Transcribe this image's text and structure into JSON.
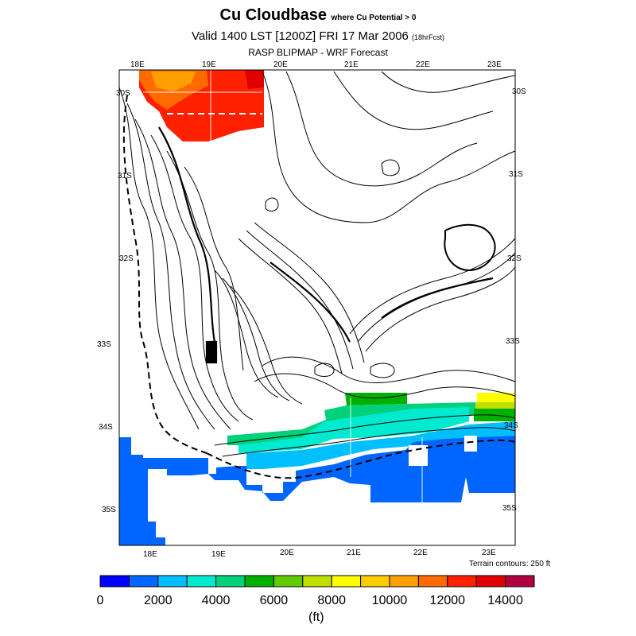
{
  "title": {
    "main": "Cu Cloudbase",
    "main_suffix": "where Cu Potential > 0",
    "valid": "Valid 1400 LST [1200Z] FRI 17 Mar 2006",
    "valid_suffix": "(18hrFcst)",
    "source": "RASP BLIPMAP - WRF Forecast"
  },
  "lon_labels": [
    "18E",
    "19E",
    "20E",
    "21E",
    "22E",
    "23E"
  ],
  "lat_labels": [
    "30S",
    "31S",
    "32S",
    "33S",
    "34S",
    "35S"
  ],
  "terrain_note": "Terrain contours: 250 ft",
  "colorbar": {
    "colors": [
      "#0000ff",
      "#0066ff",
      "#00bfff",
      "#00ead0",
      "#00d17a",
      "#00b000",
      "#60cc00",
      "#c0e000",
      "#ffff00",
      "#ffcc00",
      "#ffa000",
      "#ff6a00",
      "#ff2000",
      "#e00000",
      "#b00040"
    ],
    "tick_labels": [
      "0",
      "2000",
      "4000",
      "6000",
      "8000",
      "10000",
      "12000",
      "14000"
    ],
    "units": "(ft)"
  }
}
